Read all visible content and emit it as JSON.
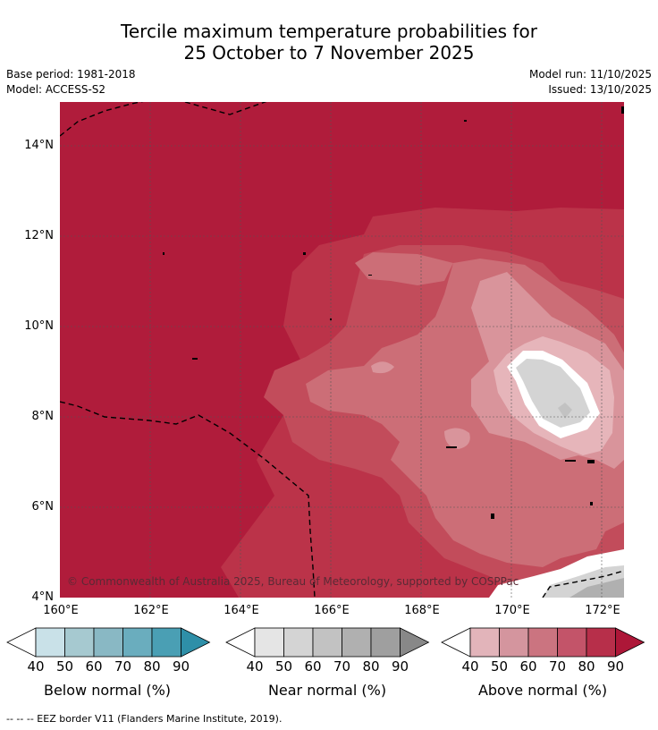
{
  "header": {
    "title_line1": "Tercile maximum temperature probabilities for",
    "title_line2": "25 October to 7 November 2025",
    "base_period": "Base period: 1981-2018",
    "model": "Model: ACCESS-S2",
    "model_run": "Model run: 11/10/2025",
    "issued": "Issued: 13/10/2025"
  },
  "map": {
    "copyright": "© Commonwealth of Australia 2025, Bureau of Meteorology, supported by COSPPac",
    "lat_ticks": [
      "14°N",
      "12°N",
      "10°N",
      "8°N",
      "6°N",
      "4°N"
    ],
    "lon_ticks": [
      "160°E",
      "162°E",
      "164°E",
      "166°E",
      "168°E",
      "170°E",
      "172°E"
    ]
  },
  "colorbars": [
    {
      "label": "Below normal (%)",
      "ticks": [
        "40",
        "50",
        "60",
        "70",
        "80",
        "90"
      ],
      "colors": [
        "#ffffff",
        "#c9e1e8",
        "#a6c9d0",
        "#89b8c4",
        "#6aadbe",
        "#4a9fb4",
        "#2e8fa8"
      ]
    },
    {
      "label": "Near normal (%)",
      "ticks": [
        "40",
        "50",
        "60",
        "70",
        "80",
        "90"
      ],
      "colors": [
        "#ffffff",
        "#e5e5e5",
        "#d4d4d4",
        "#c2c2c2",
        "#b0b0b0",
        "#9f9f9f",
        "#888888"
      ]
    },
    {
      "label": "Above normal (%)",
      "ticks": [
        "40",
        "50",
        "60",
        "70",
        "80",
        "90"
      ],
      "colors": [
        "#ffffff",
        "#e2b4ba",
        "#d4959e",
        "#cb7480",
        "#c35469",
        "#b72f4a",
        "#ad1738"
      ]
    }
  ],
  "footnote": "--  --  -- EEZ border V11 (Flanders Marine Institute, 2019)."
}
